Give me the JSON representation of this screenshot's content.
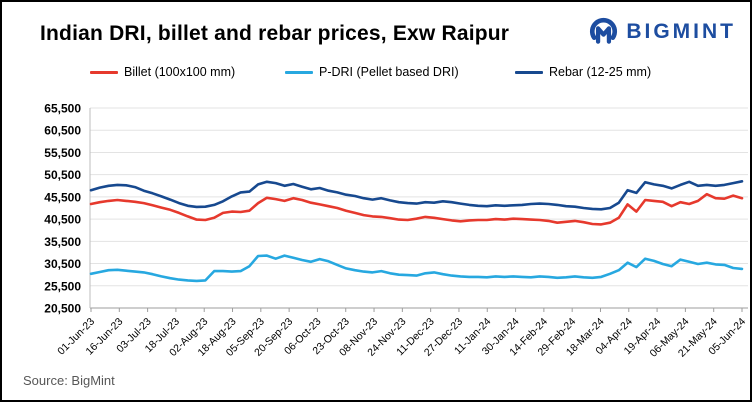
{
  "header": {
    "title": "Indian DRI, billet and rebar prices, Exw Raipur",
    "logo_text": "BIGMINT"
  },
  "source": {
    "label": "Source: BigMint"
  },
  "colors": {
    "billet_red": "#e6392d",
    "pdri_cyan": "#27a8e0",
    "rebar_navy": "#17498f",
    "logo_blue": "#1d4da0"
  },
  "chart_data": {
    "type": "line",
    "title": "Indian DRI, billet and rebar prices, Exw Raipur",
    "xlabel": "",
    "ylabel": "",
    "ylim": [
      20500,
      65500
    ],
    "ytick_step": 5000,
    "y_tick_labels": [
      "65,500",
      "60,500",
      "55,500",
      "50,500",
      "45,500",
      "40,500",
      "35,500",
      "30,500",
      "25,500",
      "20,500"
    ],
    "x_range": [
      "01-Jun-23",
      "05-Jun-24"
    ],
    "x_tick_labels": [
      "01-Jun-23",
      "16-Jun-23",
      "03-Jul-23",
      "18-Jul-23",
      "02-Aug-23",
      "18-Aug-23",
      "05-Sep-23",
      "20-Sep-23",
      "06-Oct-23",
      "23-Oct-23",
      "08-Nov-23",
      "24-Nov-23",
      "11-Dec-23",
      "27-Dec-23",
      "11-Jan-24",
      "30-Jan-24",
      "14-Feb-24",
      "29-Feb-24",
      "18-Mar-24",
      "04-Apr-24",
      "19-Apr-24",
      "06-May-24",
      "21-May-24",
      "05-Jun-24"
    ],
    "grid": "horizontal",
    "legend_position": "top",
    "series": [
      {
        "name": "Billet (100x100 mm)",
        "color": "#e6392d",
        "values": [
          43900,
          44300,
          44600,
          44800,
          44600,
          44400,
          44100,
          43600,
          43100,
          42600,
          41900,
          41100,
          40400,
          40300,
          40800,
          41900,
          42200,
          42100,
          42400,
          44100,
          45300,
          45000,
          44600,
          45200,
          44800,
          44200,
          43800,
          43400,
          43000,
          42400,
          41900,
          41400,
          41100,
          41000,
          40700,
          40400,
          40300,
          40600,
          41000,
          40800,
          40500,
          40200,
          40000,
          40200,
          40300,
          40300,
          40500,
          40400,
          40600,
          40500,
          40400,
          40300,
          40100,
          39700,
          39900,
          40100,
          39800,
          39400,
          39300,
          39700,
          40800,
          43800,
          42200,
          44800,
          44600,
          44400,
          43400,
          44300,
          43900,
          44600,
          46100,
          45200,
          45100,
          45800,
          45200
        ]
      },
      {
        "name": "P-DRI (Pellet based DRI)",
        "color": "#27a8e0",
        "values": [
          28200,
          28600,
          29000,
          29100,
          28900,
          28700,
          28500,
          28100,
          27600,
          27200,
          26900,
          26700,
          26600,
          26700,
          28800,
          28800,
          28700,
          28800,
          29900,
          32200,
          32300,
          31600,
          32300,
          31800,
          31300,
          30900,
          31500,
          31000,
          30200,
          29400,
          29000,
          28700,
          28500,
          28800,
          28300,
          28000,
          27900,
          27800,
          28300,
          28500,
          28100,
          27800,
          27600,
          27500,
          27500,
          27400,
          27600,
          27500,
          27600,
          27500,
          27400,
          27600,
          27500,
          27300,
          27400,
          27600,
          27400,
          27300,
          27500,
          28200,
          29000,
          30700,
          29700,
          31600,
          31100,
          30400,
          29900,
          31400,
          30900,
          30400,
          30700,
          30300,
          30200,
          29500,
          29300
        ]
      },
      {
        "name": "Rebar (12-25 mm)",
        "color": "#17498f",
        "values": [
          47000,
          47600,
          48000,
          48200,
          48100,
          47700,
          46900,
          46300,
          45600,
          44900,
          44100,
          43500,
          43250,
          43300,
          43700,
          44500,
          45600,
          46500,
          46700,
          48300,
          48900,
          48600,
          48000,
          48400,
          47800,
          47200,
          47500,
          46900,
          46500,
          46000,
          45700,
          45200,
          44900,
          45200,
          44700,
          44300,
          44100,
          44000,
          44300,
          44200,
          44500,
          44300,
          44000,
          43700,
          43500,
          43400,
          43600,
          43500,
          43600,
          43700,
          43900,
          44000,
          43900,
          43700,
          43400,
          43300,
          43000,
          42800,
          42700,
          43000,
          44200,
          47000,
          46400,
          48800,
          48300,
          48000,
          47400,
          48200,
          48900,
          48000,
          48200,
          48000,
          48200,
          48600,
          49000
        ]
      }
    ]
  }
}
